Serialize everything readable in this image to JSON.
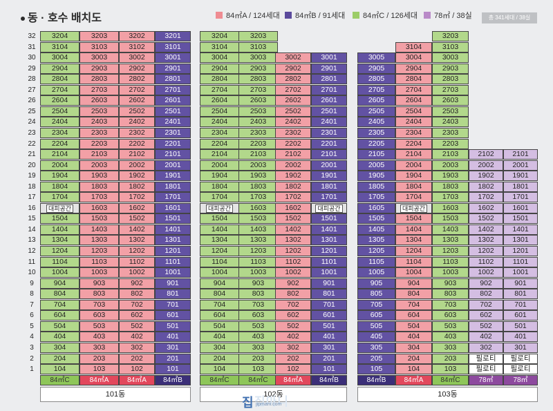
{
  "title": "동 · 호수 배치도",
  "legend": [
    {
      "label": "84㎡A / 124세대",
      "color": "#ef8c92"
    },
    {
      "label": "84㎡B / 91세대",
      "color": "#5b4a9c"
    },
    {
      "label": "84㎡C / 126세대",
      "color": "#9ccd68"
    },
    {
      "label": "78㎡ / 38실",
      "color": "#b98ac8"
    }
  ],
  "total": "총 341세대 / 38실",
  "colors": {
    "A": "#f2a0a6",
    "B": "#6252a3",
    "C": "#b2d88b",
    "D": "#d4bee2"
  },
  "type_colors": {
    "A": "#e2485c",
    "B": "#3b2f78",
    "C": "#8ec659",
    "D": "#8d4a9e"
  },
  "floors": [
    "32",
    "31",
    "30",
    "29",
    "28",
    "27",
    "26",
    "25",
    "24",
    "23",
    "22",
    "21",
    "20",
    "19",
    "18",
    "17",
    "16",
    "15",
    "14",
    "13",
    "12",
    "11",
    "10",
    "9",
    "8",
    "7",
    "6",
    "5",
    "4",
    "3",
    "2",
    "1"
  ],
  "labels": {
    "refuge": "대피공간",
    "pilotis": "필로티"
  },
  "buildings": [
    {
      "name": "101동",
      "columns": [
        {
          "line": "04",
          "type": "C",
          "top": 32,
          "type_label": "84㎡C",
          "refuge": [
            16
          ]
        },
        {
          "line": "03",
          "type": "A",
          "top": 32,
          "type_label": "84㎡A"
        },
        {
          "line": "02",
          "type": "A",
          "top": 32,
          "type_label": "84㎡A"
        },
        {
          "line": "01",
          "type": "B",
          "top": 32,
          "type_label": "84㎡B"
        }
      ]
    },
    {
      "name": "102동",
      "columns": [
        {
          "line": "04",
          "type": "C",
          "top": 32,
          "type_label": "84㎡C",
          "refuge": [
            16
          ]
        },
        {
          "line": "03",
          "type": "C",
          "top": 32,
          "type_label": "84㎡C"
        },
        {
          "line": "02",
          "type": "A",
          "top": 30,
          "type_label": "84㎡A"
        },
        {
          "line": "01",
          "type": "B",
          "top": 30,
          "type_label": "84㎡B",
          "refuge": [
            16
          ]
        }
      ]
    },
    {
      "name": "103동",
      "columns": [
        {
          "line": "05",
          "type": "B",
          "top": 30,
          "type_label": "84㎡B"
        },
        {
          "line": "04",
          "type": "A",
          "top": 31,
          "type_label": "84㎡A",
          "refuge": [
            16
          ]
        },
        {
          "line": "03",
          "type": "C",
          "top": 32,
          "type_label": "84㎡C"
        },
        {
          "line": "02",
          "type": "D",
          "top": 21,
          "type_label": "78㎡",
          "pilotis": [
            1,
            2
          ]
        },
        {
          "line": "01",
          "type": "D",
          "top": 21,
          "type_label": "78㎡",
          "pilotis": [
            1,
            2
          ]
        }
      ]
    }
  ],
  "watermark": {
    "text": "집마니",
    "url": "jipmani.com"
  }
}
